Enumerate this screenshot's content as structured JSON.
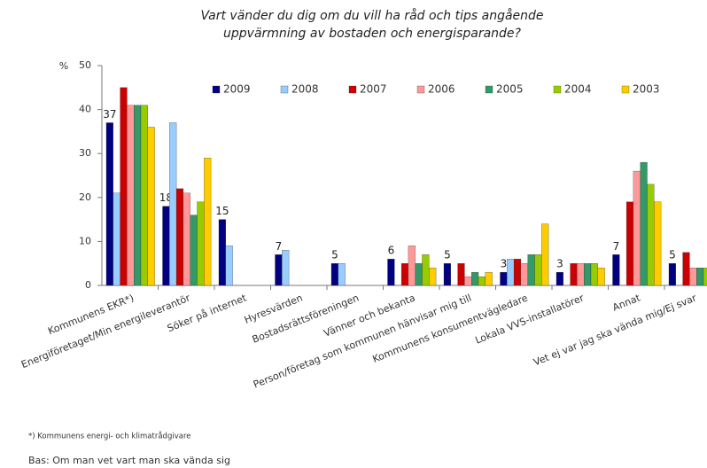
{
  "chart_data": {
    "type": "bar",
    "title": [
      "Vart vänder du dig om du vill ha råd och tips angående",
      "uppvärmning av bostaden och energisparande?"
    ],
    "y_unit": "%",
    "categories": [
      "Kommunens EKR*)",
      "Energiföretaget/Min energileverantör",
      "Söker på internet",
      "Hyresvärden",
      "Bostadsrättsföreningen",
      "Vänner och bekanta",
      "Person/företag som kommunen hänvisar mig till",
      "Kommunens konsumentvägledare",
      "Lokala VVS-installatörer",
      "Annat",
      "Vet ej var jag ska vända mig/Ej svar"
    ],
    "series": [
      {
        "name": "2009",
        "color": "#000080",
        "values": [
          37,
          18,
          15,
          7,
          5,
          6,
          5,
          3,
          3,
          7,
          5
        ]
      },
      {
        "name": "2008",
        "color": "#99ccff",
        "values": [
          21,
          37,
          9,
          8,
          5,
          null,
          null,
          6,
          null,
          null,
          null
        ]
      },
      {
        "name": "2007",
        "color": "#cc0000",
        "values": [
          45,
          22,
          null,
          null,
          null,
          5,
          5,
          6,
          5,
          19,
          7.5
        ]
      },
      {
        "name": "2006",
        "color": "#ff9999",
        "values": [
          41,
          21,
          null,
          null,
          null,
          9,
          2,
          5,
          5,
          26,
          4
        ]
      },
      {
        "name": "2005",
        "color": "#339966",
        "values": [
          41,
          16,
          null,
          null,
          null,
          5,
          3,
          7,
          5,
          28,
          4
        ]
      },
      {
        "name": "2004",
        "color": "#99cc00",
        "values": [
          41,
          19,
          null,
          null,
          null,
          7,
          2,
          7,
          5,
          23,
          4
        ]
      },
      {
        "name": "2003",
        "color": "#ffcc00",
        "values": [
          36,
          29,
          null,
          null,
          null,
          4,
          3,
          14,
          4,
          19,
          2
        ]
      }
    ],
    "data_labels_series": 0,
    "ylim": [
      0,
      50
    ],
    "yticks": [
      0,
      10,
      20,
      30,
      40,
      50
    ],
    "grid": false,
    "legend": "top-right",
    "footnote": "*) Kommunens energi- och klimatrådgivare",
    "base_note": "Bas: Om man vet vart man ska vända sig"
  }
}
